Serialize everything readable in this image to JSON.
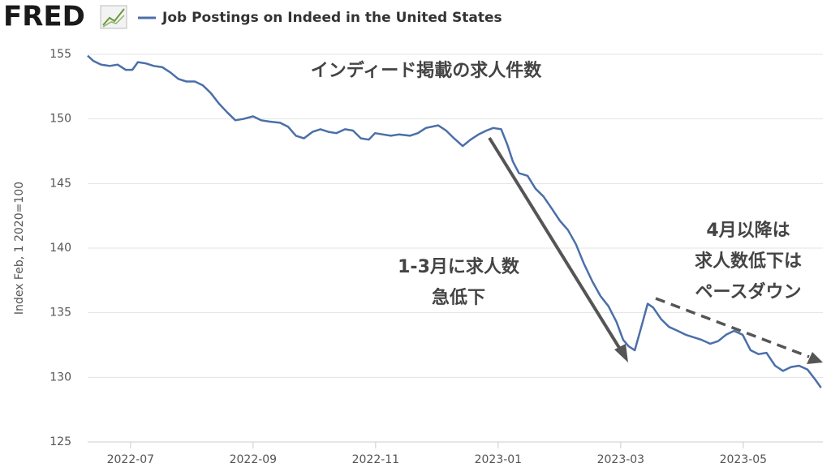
{
  "chart_data": {
    "type": "line",
    "logo": "FRED",
    "y_label": "Index Feb, 1 2020=100",
    "annotations": [
      "インディード掲載の求人件数",
      "1-3月に求人数",
      "急低下",
      "4月以降は",
      "求人数低下は",
      "ペースダウン"
    ],
    "x": [
      -0.7,
      -0.61,
      -0.48,
      -0.34,
      -0.21,
      -0.08,
      0.03,
      0.12,
      0.25,
      0.38,
      0.52,
      0.65,
      0.78,
      0.91,
      1.05,
      1.18,
      1.31,
      1.44,
      1.58,
      1.71,
      1.84,
      2.0,
      2.13,
      2.26,
      2.44,
      2.57,
      2.7,
      2.83,
      2.97,
      3.1,
      3.23,
      3.36,
      3.5,
      3.63,
      3.76,
      3.89,
      3.99,
      4.12,
      4.25,
      4.38,
      4.56,
      4.69,
      4.82,
      5.02,
      5.15,
      5.28,
      5.42,
      5.55,
      5.68,
      5.81,
      5.92,
      6.05,
      6.15,
      6.24,
      6.34,
      6.48,
      6.61,
      6.74,
      6.87,
      7.01,
      7.14,
      7.27,
      7.4,
      7.54,
      7.67,
      7.8,
      7.93,
      8.04,
      8.13,
      8.23,
      8.33,
      8.44,
      8.53,
      8.66,
      8.79,
      8.93,
      9.06,
      9.19,
      9.32,
      9.46,
      9.59,
      9.72,
      9.85,
      9.99,
      10.12,
      10.25,
      10.38,
      10.52,
      10.65,
      10.78,
      10.91,
      11.05,
      11.18,
      11.27
    ],
    "series": [
      {
        "name": "Job Postings on Indeed in the United States",
        "color": "#4b6fa8",
        "values": [
          154.9,
          154.5,
          154.2,
          154.1,
          154.2,
          153.8,
          153.8,
          154.4,
          154.3,
          154.1,
          154.0,
          153.6,
          153.1,
          152.9,
          152.9,
          152.6,
          152.0,
          151.2,
          150.5,
          149.9,
          150.0,
          150.2,
          149.9,
          149.8,
          149.7,
          149.4,
          148.7,
          148.5,
          149.0,
          149.2,
          149.0,
          148.9,
          149.2,
          149.1,
          148.5,
          148.4,
          148.9,
          148.8,
          148.7,
          148.8,
          148.7,
          148.9,
          149.3,
          149.5,
          149.1,
          148.5,
          147.9,
          148.4,
          148.8,
          149.1,
          149.3,
          149.2,
          148.0,
          146.7,
          145.8,
          145.6,
          144.6,
          144.0,
          143.1,
          142.1,
          141.4,
          140.3,
          138.8,
          137.4,
          136.3,
          135.5,
          134.3,
          132.9,
          132.4,
          132.1,
          133.8,
          135.7,
          135.4,
          134.5,
          133.9,
          133.6,
          133.3,
          133.1,
          132.9,
          132.6,
          132.8,
          133.3,
          133.6,
          133.3,
          132.1,
          131.8,
          131.9,
          130.9,
          130.5,
          130.8,
          130.9,
          130.6,
          129.8,
          129.2
        ]
      }
    ],
    "xlim": [
      -0.7,
      11.3
    ],
    "xticks": [
      {
        "value": 0,
        "label": "2022-07"
      },
      {
        "value": 2,
        "label": "2022-09"
      },
      {
        "value": 4,
        "label": "2022-11"
      },
      {
        "value": 6,
        "label": "2023-01"
      },
      {
        "value": 8,
        "label": "2023-03"
      },
      {
        "value": 10,
        "label": "2023-05"
      }
    ],
    "ylim": [
      125,
      155
    ],
    "yticks": [
      125,
      130,
      135,
      140,
      145,
      150,
      155
    ],
    "grid": true
  }
}
